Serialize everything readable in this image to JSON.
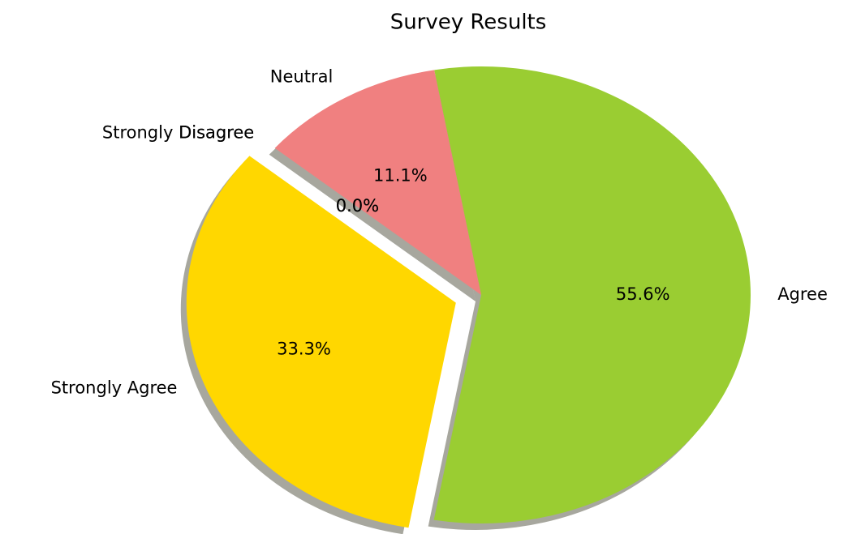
{
  "chart_data": {
    "type": "pie",
    "title": "Survey Results",
    "categories": [
      "Strongly Agree",
      "Agree",
      "Neutral",
      "Disagree",
      "Strongly Disagree"
    ],
    "values": [
      33.3,
      55.6,
      11.1,
      0.0,
      0.0
    ],
    "value_labels": [
      "33.3%",
      "55.6%",
      "11.1%",
      "0.0%",
      "0.0%"
    ],
    "colors": [
      "gold",
      "yellowgreen",
      "lightcoral",
      "lightskyblue",
      "lightgrey"
    ],
    "explode": [
      0.1,
      0,
      0,
      0,
      0
    ],
    "startangle": 140,
    "shadow": true
  }
}
